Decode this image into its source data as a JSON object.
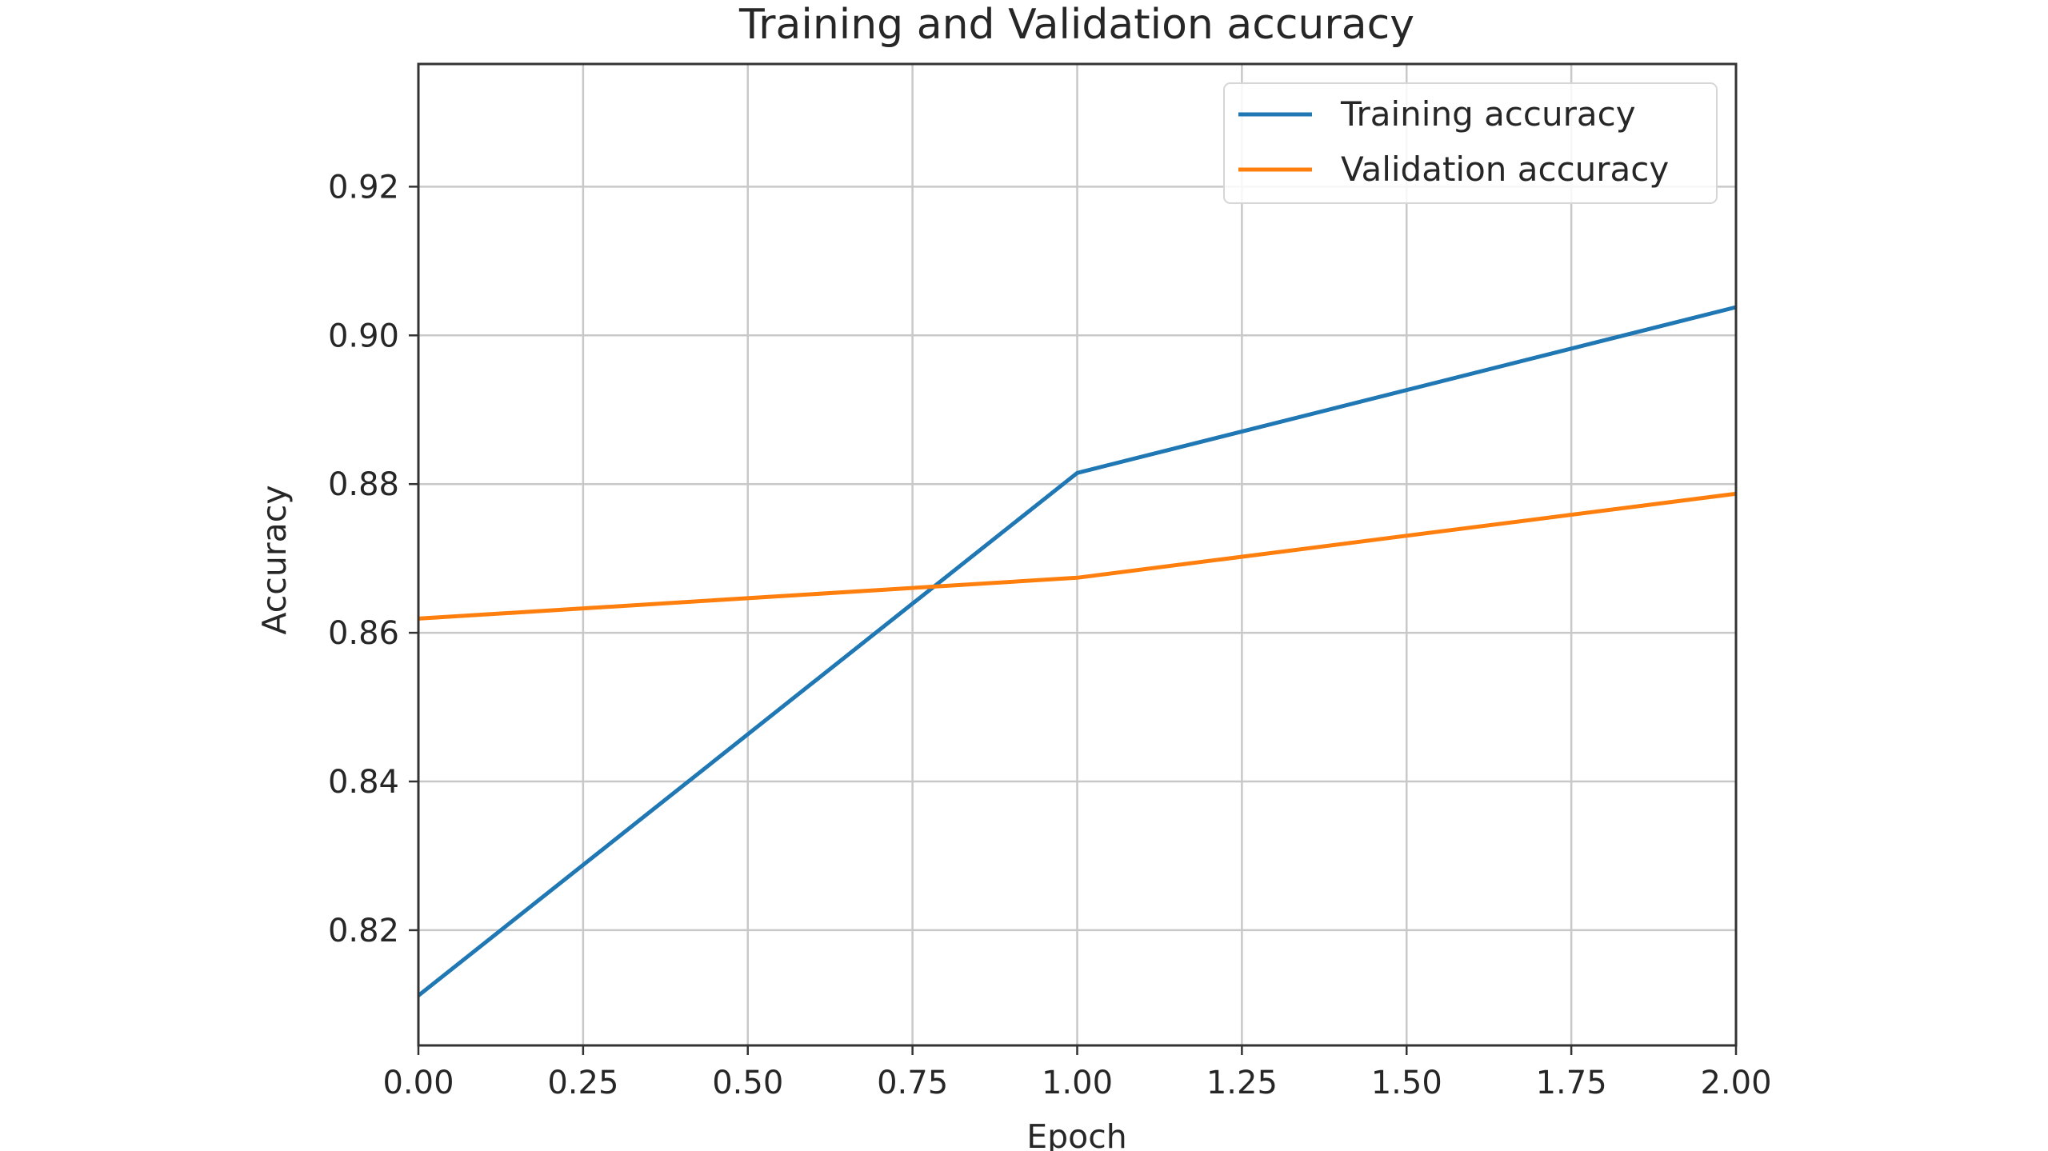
{
  "chart_data": {
    "type": "line",
    "title": "Training and Validation accuracy",
    "xlabel": "Epoch",
    "ylabel": "Accuracy",
    "x": [
      0,
      1,
      2
    ],
    "xlim": [
      0,
      2
    ],
    "ylim": [
      0.8045,
      0.9365
    ],
    "xticks": [
      0,
      0.25,
      0.5,
      0.75,
      1.0,
      1.25,
      1.5,
      1.75,
      2.0
    ],
    "xtick_labels": [
      "0.00",
      "0.25",
      "0.50",
      "0.75",
      "1.00",
      "1.25",
      "1.50",
      "1.75",
      "2.00"
    ],
    "yticks": [
      0.82,
      0.84,
      0.86,
      0.88,
      0.9,
      0.92
    ],
    "ytick_labels": [
      "0.82",
      "0.84",
      "0.86",
      "0.88",
      "0.90",
      "0.92"
    ],
    "grid": true,
    "legend_position": "top-right",
    "series": [
      {
        "name": "Training accuracy",
        "color": "#1f77b4",
        "values": [
          0.8112,
          0.8815,
          0.9038
        ]
      },
      {
        "name": "Validation accuracy",
        "color": "#ff7f0e",
        "values": [
          0.8619,
          0.8674,
          0.8787
        ]
      }
    ]
  }
}
